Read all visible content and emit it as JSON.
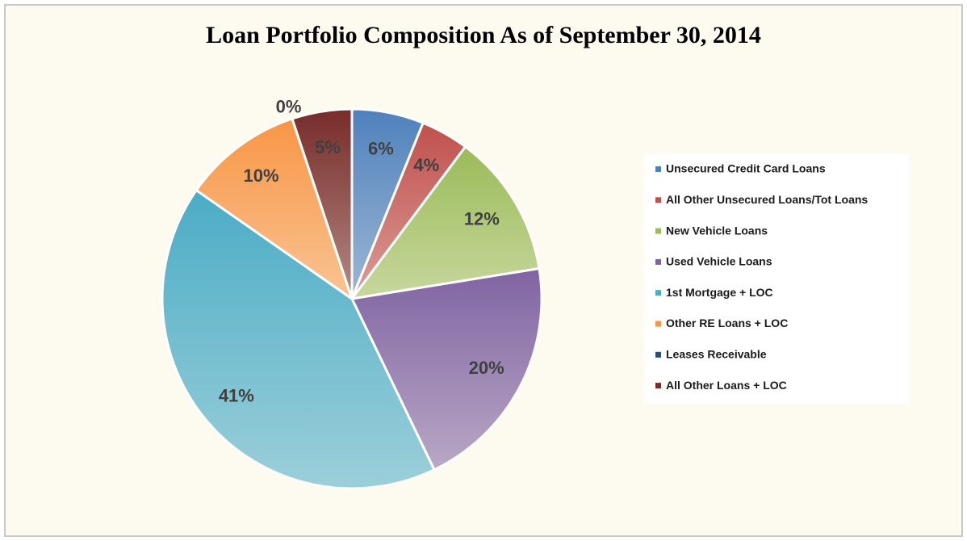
{
  "chart_data": {
    "type": "pie",
    "title": "Loan Portfolio Composition As of September 30, 2014",
    "categories": [
      "Unsecured Credit Card Loans",
      "All Other Unsecured Loans/Tot Loans",
      "New Vehicle Loans",
      "Used Vehicle Loans",
      "1st Mortgage + LOC",
      "Other RE Loans + LOC",
      "Leases Receivable",
      "All Other Loans + LOC"
    ],
    "values": [
      6,
      4,
      12,
      20,
      41,
      10,
      0,
      5
    ],
    "value_labels": [
      "6%",
      "4%",
      "12%",
      "20%",
      "41%",
      "10%",
      "0%",
      "5%"
    ],
    "colors": [
      "#4f81bd",
      "#c0504d",
      "#9bbb59",
      "#8064a2",
      "#4bacc6",
      "#f79646",
      "#2c4d75",
      "#772c2a"
    ]
  }
}
